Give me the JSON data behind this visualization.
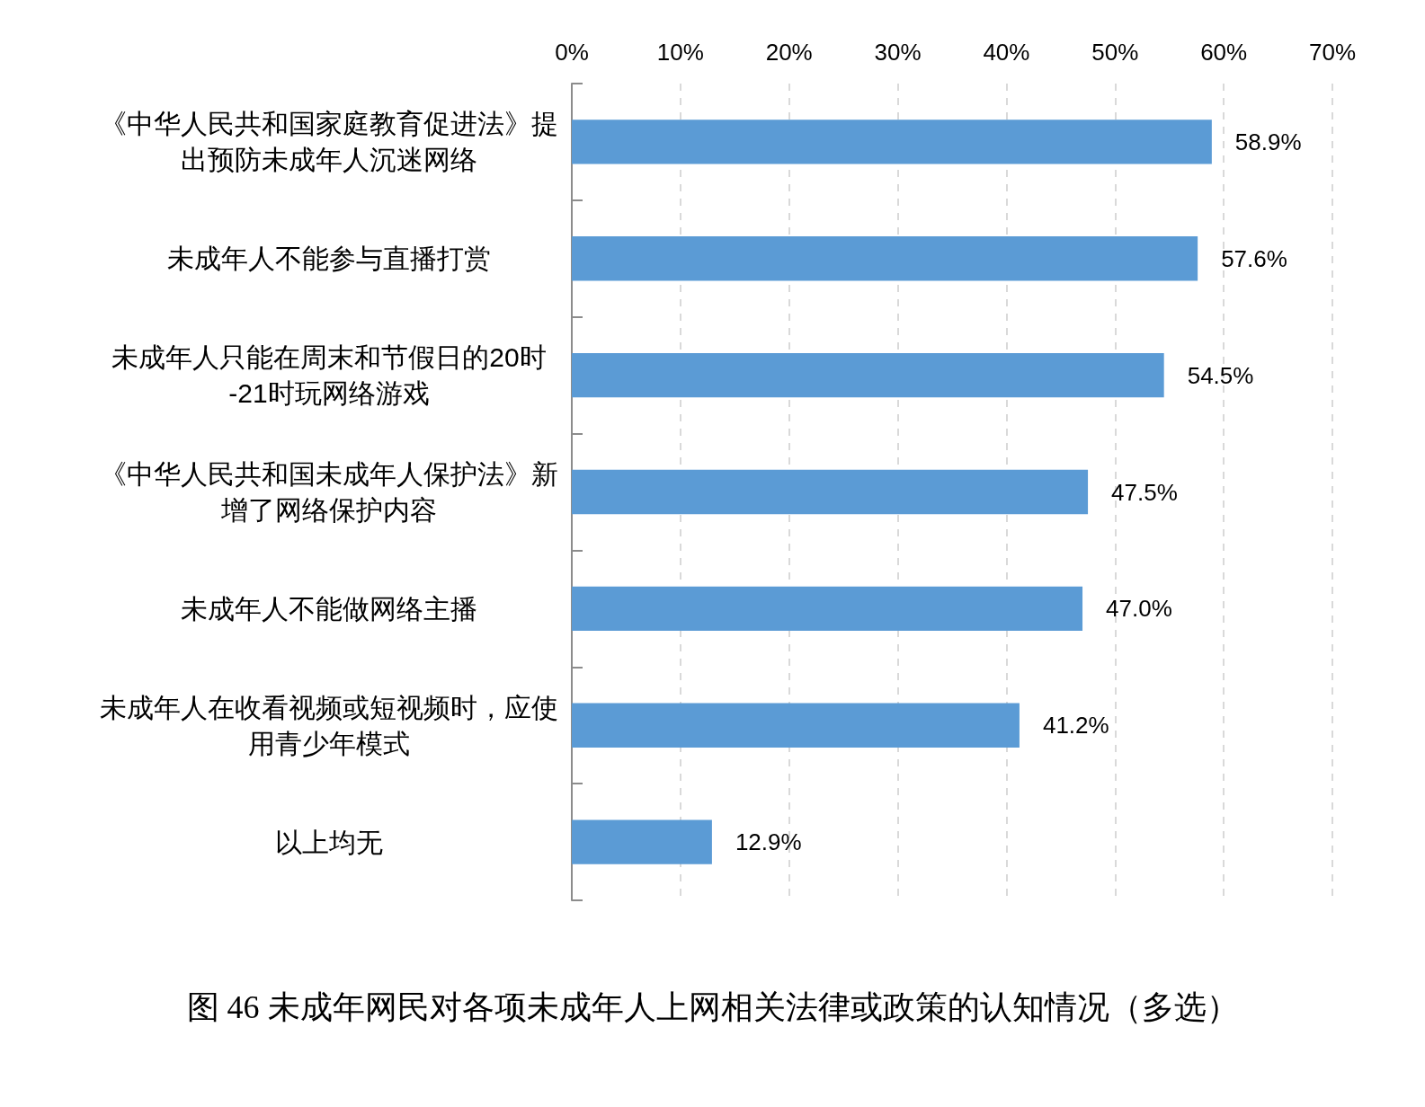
{
  "chart_data": {
    "type": "bar",
    "orientation": "horizontal",
    "title": "图 46 未成年网民对各项未成年人上网相关法律或政策的认知情况（多选）",
    "categories": [
      "《中华人民共和国家庭教育促进法》提出预防未成年人沉迷网络",
      "未成年人不能参与直播打赏",
      "未成年人只能在周末和节假日的20时-21时玩网络游戏",
      "《中华人民共和国未成年人保护法》新增了网络保护内容",
      "未成年人不能做网络主播",
      "未成年人在收看视频或短视频时，应使用青少年模式",
      "以上均无"
    ],
    "values": [
      58.9,
      57.6,
      54.5,
      47.5,
      47.0,
      41.2,
      12.9
    ],
    "value_labels": [
      "58.9%",
      "57.6%",
      "54.5%",
      "47.5%",
      "47.0%",
      "41.2%",
      "12.9%"
    ],
    "color": "#5b9bd5",
    "xlim": [
      0,
      70
    ],
    "xticks": [
      {
        "value": 0,
        "label": "0%"
      },
      {
        "value": 10,
        "label": "10%"
      },
      {
        "value": 20,
        "label": "20%"
      },
      {
        "value": 30,
        "label": "30%"
      },
      {
        "value": 40,
        "label": "40%"
      },
      {
        "value": 50,
        "label": "50%"
      },
      {
        "value": 60,
        "label": "60%"
      },
      {
        "value": 70,
        "label": "70%"
      }
    ],
    "grid": "x"
  }
}
